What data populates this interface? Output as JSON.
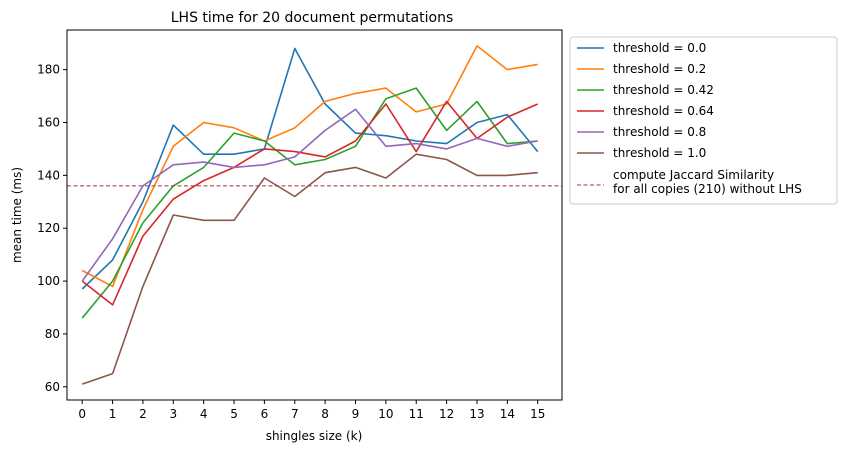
{
  "chart_data": {
    "type": "line",
    "title": "LHS time for 20 document permutations",
    "xlabel": "shingles size (k)",
    "ylabel": "mean time (ms)",
    "x": [
      0,
      1,
      2,
      3,
      4,
      5,
      6,
      7,
      8,
      9,
      10,
      11,
      12,
      13,
      14,
      15
    ],
    "xlim": [
      -0.5,
      15.8
    ],
    "ylim": [
      55,
      195
    ],
    "xticks": [
      "0",
      "1",
      "2",
      "3",
      "4",
      "5",
      "6",
      "7",
      "8",
      "9",
      "10",
      "11",
      "12",
      "13",
      "14",
      "15"
    ],
    "yticks": [
      60,
      80,
      100,
      120,
      140,
      160,
      180
    ],
    "grid": false,
    "legend_position": "outside-right",
    "series": [
      {
        "name": "threshold = 0.0",
        "color": "#1f77b4",
        "values": [
          97,
          108,
          130,
          159,
          148,
          148,
          150,
          188,
          167,
          156,
          155,
          153,
          152,
          160,
          163,
          149
        ]
      },
      {
        "name": "threshold = 0.2",
        "color": "#ff7f0e",
        "values": [
          104,
          98,
          127,
          151,
          160,
          158,
          153,
          158,
          168,
          171,
          173,
          164,
          167,
          189,
          180,
          182
        ]
      },
      {
        "name": "threshold = 0.42",
        "color": "#2ca02c",
        "values": [
          86,
          100,
          122,
          136,
          143,
          156,
          153,
          144,
          146,
          151,
          169,
          173,
          157,
          168,
          152,
          153
        ]
      },
      {
        "name": "threshold = 0.64",
        "color": "#d62728",
        "values": [
          100,
          91,
          117,
          131,
          138,
          143,
          150,
          149,
          147,
          153,
          167,
          149,
          168,
          154,
          162,
          167
        ]
      },
      {
        "name": "threshold = 0.8",
        "color": "#9467bd",
        "values": [
          100,
          116,
          136,
          144,
          145,
          143,
          144,
          147,
          157,
          165,
          151,
          152,
          150,
          154,
          151,
          153
        ]
      },
      {
        "name": "threshold = 1.0",
        "color": "#8c564b",
        "values": [
          61,
          65,
          98,
          125,
          123,
          123,
          139,
          132,
          141,
          143,
          139,
          148,
          146,
          140,
          140,
          141
        ]
      }
    ],
    "reference_line": {
      "y": 136,
      "color": "#a83232",
      "label_lines": [
        "compute Jaccard Similarity",
        "for all copies (210) without LHS"
      ]
    }
  }
}
